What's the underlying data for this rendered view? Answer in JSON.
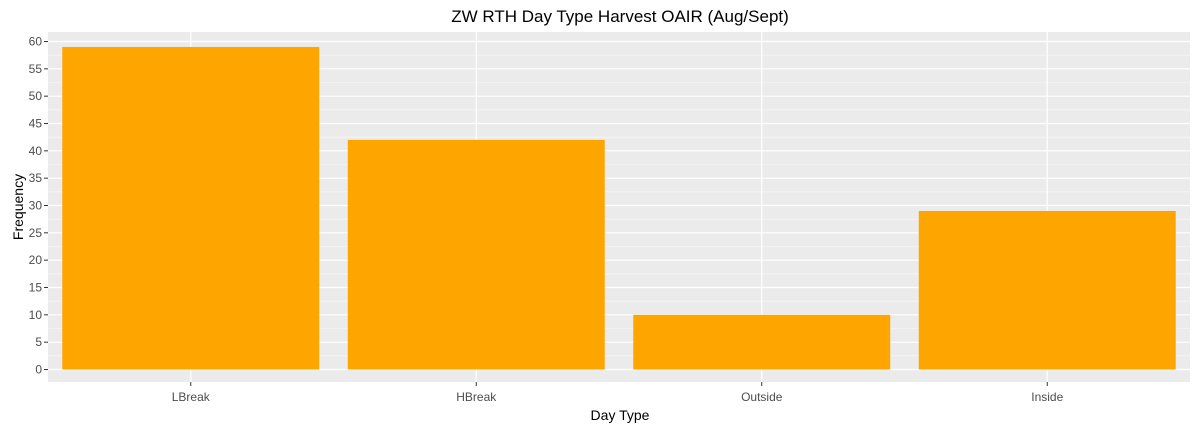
{
  "chart_data": {
    "type": "bar",
    "title": "ZW RTH Day Type Harvest OAIR (Aug/Sept)",
    "xlabel": "Day Type",
    "ylabel": "Frequency",
    "categories": [
      "LBreak",
      "HBreak",
      "Outside",
      "Inside"
    ],
    "values": [
      59,
      42,
      10,
      29
    ],
    "ylim": [
      0,
      62
    ],
    "yticks": [
      0,
      5,
      10,
      15,
      20,
      25,
      30,
      35,
      40,
      45,
      50,
      55,
      60
    ],
    "grid": true,
    "legend": "none",
    "colors": {
      "bar": "#FFA500",
      "panel_background": "#EBEBEB",
      "grid_major": "#FFFFFF",
      "grid_minor": "#F5F5F5"
    }
  }
}
